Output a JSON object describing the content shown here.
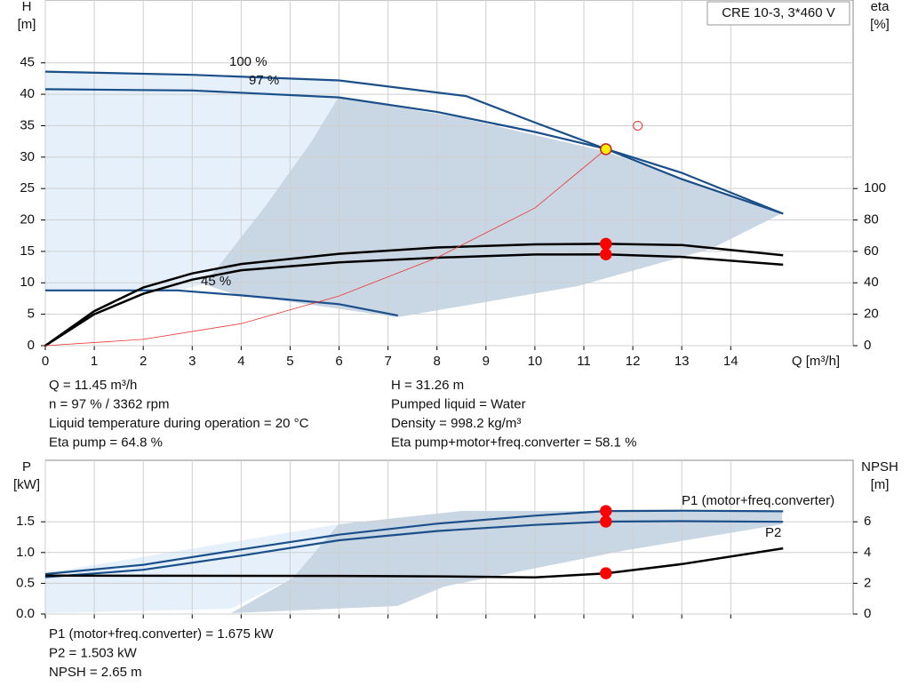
{
  "title": "CRE 10-3, 3*460 V",
  "chart_data": [
    {
      "type": "line",
      "y_label": [
        "H",
        "[m]"
      ],
      "y2_label": [
        "eta",
        "[%]"
      ],
      "x_label": "Q [m³/h]",
      "xlim": [
        0,
        16.5
      ],
      "xticks": [
        0,
        1,
        2,
        3,
        4,
        5,
        6,
        7,
        8,
        9,
        10,
        11,
        12,
        13,
        14
      ],
      "ylim": [
        0,
        55
      ],
      "yticks": [
        0,
        5,
        10,
        15,
        20,
        25,
        30,
        35,
        40,
        45
      ],
      "y2lim": [
        0,
        220
      ],
      "y2ticks": [
        0,
        20,
        40,
        60,
        80,
        100
      ],
      "grid": true,
      "series": [
        {
          "name": "100 %",
          "color": "#1a4f8a",
          "x": [
            0,
            3,
            6,
            8.6,
            10,
            11.45,
            13,
            15.07
          ],
          "values": [
            43.6,
            43.1,
            42.2,
            39.7,
            35.5,
            31.3,
            26.5,
            21
          ]
        },
        {
          "name": "97 %",
          "color": "#1a4f8a",
          "x": [
            0,
            3,
            6,
            8,
            10,
            11.45,
            13,
            15.07
          ],
          "values": [
            40.8,
            40.6,
            39.5,
            37.2,
            34.0,
            31.3,
            27.5,
            21
          ]
        },
        {
          "name": "45 %",
          "color": "#1a4f8a",
          "x": [
            0,
            2.7,
            4,
            6,
            7.2
          ],
          "values": [
            8.8,
            8.8,
            8.0,
            6.6,
            4.8
          ]
        },
        {
          "color": "#000000",
          "axis": "y2",
          "x": [
            0,
            1,
            2,
            3,
            4,
            6,
            8,
            10,
            11.45,
            13,
            15.07
          ],
          "values": [
            0,
            22,
            37,
            46,
            52,
            58.5,
            62.5,
            64.5,
            64.8,
            64,
            57.5
          ]
        },
        {
          "color": "#000000",
          "axis": "y2",
          "x": [
            0,
            1,
            2,
            3,
            4,
            6,
            8,
            10,
            11.45,
            13,
            15.07
          ],
          "values": [
            0,
            20,
            33,
            42,
            48,
            53,
            56,
            58,
            58.1,
            56.5,
            51.5
          ]
        },
        {
          "color": "#ee3333",
          "x": [
            0,
            2,
            4,
            6,
            8,
            10,
            11.45
          ],
          "values": [
            0,
            1,
            3.5,
            7.9,
            14,
            21.9,
            31.26
          ]
        },
        {
          "color": "#ee3333",
          "marker": "open",
          "x": [
            12.1
          ],
          "values": [
            35
          ]
        },
        {
          "color": "#ffee00",
          "marker": "filled",
          "x": [
            11.45
          ],
          "values": [
            31.26
          ]
        },
        {
          "color": "#ff0000",
          "marker": "filled",
          "axis": "y2",
          "x": [
            11.45,
            11.45
          ],
          "values": [
            64.8,
            58.1
          ]
        }
      ]
    },
    {
      "type": "line",
      "y_label": [
        "P",
        "[kW]"
      ],
      "y2_label": [
        "NPSH",
        "[m]"
      ],
      "xlim": [
        0,
        16.5
      ],
      "xticks": [
        0,
        1,
        2,
        3,
        4,
        5,
        6,
        7,
        8,
        9,
        10,
        11,
        12,
        13,
        14
      ],
      "ylim": [
        0,
        2.5
      ],
      "yticks": [
        {
          "value": 0,
          "label": "0.0"
        },
        0.5,
        {
          "value": 1,
          "label": "1.0"
        },
        1.5
      ],
      "y2lim": [
        0,
        10
      ],
      "y2ticks": [
        0,
        2,
        4,
        6
      ],
      "grid": true,
      "series": [
        {
          "name": "P1 (motor+freq.converter)",
          "color": "#1a4f8a",
          "x": [
            0,
            2,
            4,
            6,
            8,
            10,
            11.45,
            13,
            15.07
          ],
          "values": [
            0.65,
            0.8,
            1.05,
            1.29,
            1.47,
            1.6,
            1.675,
            1.68,
            1.67
          ]
        },
        {
          "name": "P2",
          "color": "#1a4f8a",
          "x": [
            0,
            2,
            4,
            6,
            8,
            10,
            11.45,
            13,
            15.07
          ],
          "values": [
            0.6,
            0.72,
            0.95,
            1.2,
            1.35,
            1.45,
            1.503,
            1.51,
            1.5
          ]
        },
        {
          "color": "#000000",
          "axis": "y2",
          "x": [
            0,
            6,
            8,
            10,
            11.45,
            13,
            15.07
          ],
          "values": [
            2.5,
            2.48,
            2.45,
            2.38,
            2.65,
            3.25,
            4.27
          ]
        },
        {
          "color": "#ff0000",
          "marker": "filled",
          "x": [
            11.45,
            11.45
          ],
          "values": [
            1.675,
            1.503
          ]
        },
        {
          "color": "#ff0000",
          "marker": "filled",
          "axis": "y2",
          "x": [
            11.45
          ],
          "values": [
            2.65
          ]
        }
      ]
    }
  ],
  "info_top": [
    "Q = 11.45 m³/h",
    "n = 97 % / 3362 rpm",
    "Liquid temperature during operation = 20 °C",
    "Eta pump = 64.8 %",
    "H = 31.26 m",
    "Pumped liquid = Water",
    "Density = 998.2 kg/m³",
    "Eta pump+motor+freq.converter = 58.1 %"
  ],
  "info_bottom": [
    "P1 (motor+freq.converter) = 1.675 kW",
    "P2 = 1.503 kW",
    "NPSH = 2.65 m"
  ]
}
